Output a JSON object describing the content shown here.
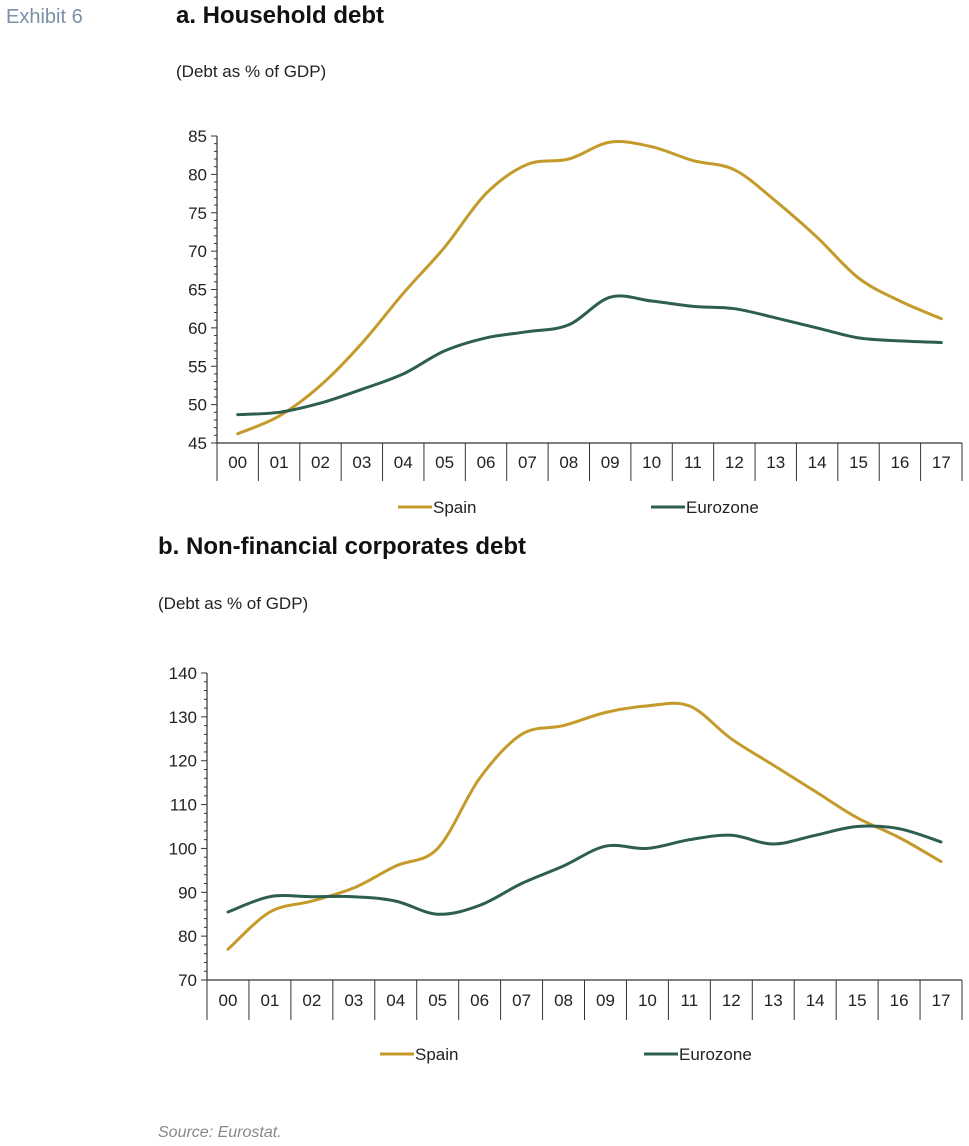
{
  "exhibit_label": "Exhibit 6",
  "source": "Source: Eurostat.",
  "colors": {
    "spain": "#c49a2a",
    "eurozone": "#2e5e52"
  },
  "chart_data": [
    {
      "type": "line",
      "title": "a. Household debt",
      "subtitle": "(Debt as % of GDP)",
      "categories": [
        "00",
        "01",
        "02",
        "03",
        "04",
        "05",
        "06",
        "07",
        "08",
        "09",
        "10",
        "11",
        "12",
        "13",
        "14",
        "15",
        "16",
        "17"
      ],
      "ylim": [
        45,
        85
      ],
      "yticks": [
        45,
        50,
        55,
        60,
        65,
        70,
        75,
        80,
        85
      ],
      "minor_tick_step": 1,
      "grid": false,
      "legend_position": "bottom",
      "series": [
        {
          "name": "Spain",
          "color": "#c49a2a",
          "values": [
            46.2,
            48.5,
            52.5,
            58.0,
            64.5,
            70.5,
            77.5,
            81.3,
            82.0,
            84.2,
            83.6,
            81.8,
            80.6,
            76.5,
            71.8,
            66.5,
            63.5,
            61.2
          ]
        },
        {
          "name": "Eurozone",
          "color": "#2e5e52",
          "values": [
            48.7,
            49.0,
            50.2,
            52.0,
            54.0,
            57.0,
            58.7,
            59.5,
            60.4,
            64.0,
            63.5,
            62.8,
            62.5,
            61.3,
            60.0,
            58.7,
            58.3,
            58.1
          ]
        }
      ]
    },
    {
      "type": "line",
      "title": "b. Non-financial corporates debt",
      "subtitle": "(Debt as % of GDP)",
      "categories": [
        "00",
        "01",
        "02",
        "03",
        "04",
        "05",
        "06",
        "07",
        "08",
        "09",
        "10",
        "11",
        "12",
        "13",
        "14",
        "15",
        "16",
        "17"
      ],
      "ylim": [
        70,
        140
      ],
      "yticks": [
        70,
        80,
        90,
        100,
        110,
        120,
        130,
        140
      ],
      "minor_tick_step": 2,
      "grid": false,
      "legend_position": "bottom",
      "series": [
        {
          "name": "Spain",
          "color": "#c49a2a",
          "values": [
            77,
            85.5,
            88,
            91,
            96,
            100,
            116,
            126,
            128,
            131,
            132.5,
            132.5,
            125,
            119,
            113,
            107,
            102.5,
            97
          ]
        },
        {
          "name": "Eurozone",
          "color": "#2e5e52",
          "values": [
            85.5,
            89,
            89,
            89,
            88,
            85,
            87,
            92,
            96,
            100.5,
            100,
            102,
            103,
            101,
            103,
            105,
            104.5,
            101.5
          ]
        }
      ]
    }
  ]
}
